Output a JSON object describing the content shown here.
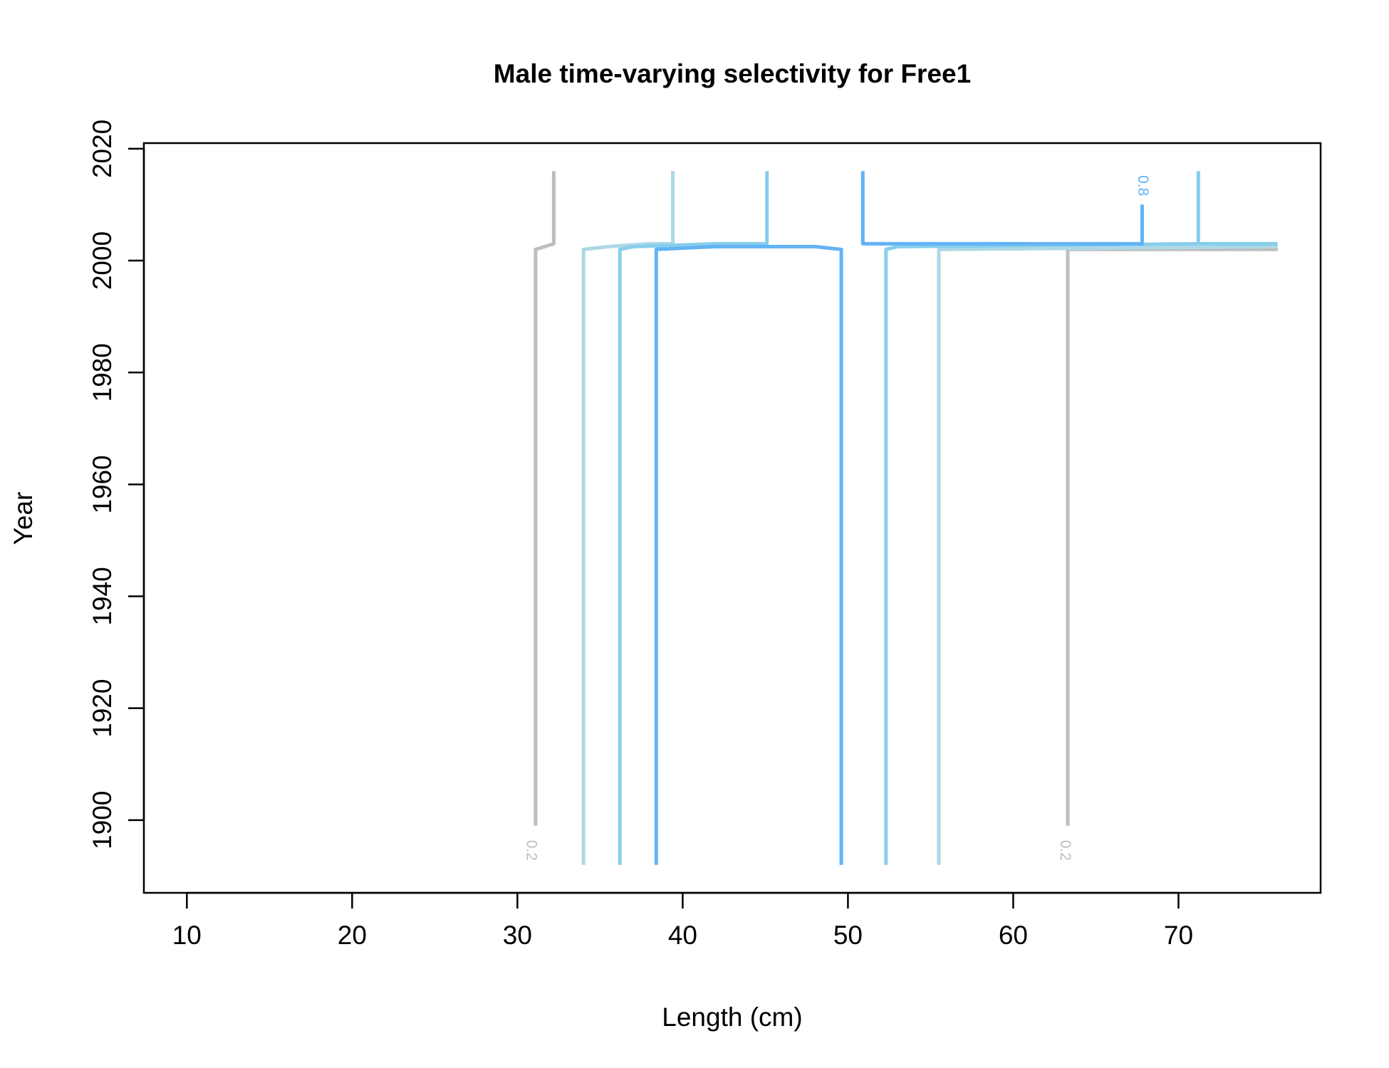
{
  "chart_data": {
    "type": "line",
    "plot_kind": "contour",
    "title": "Male time-varying selectivity for Free1",
    "xlabel": "Length (cm)",
    "ylabel": "Year",
    "xlim": [
      7.4,
      78.6
    ],
    "ylim": [
      1887,
      2021
    ],
    "x_ticks": [
      10,
      20,
      30,
      40,
      50,
      60,
      70
    ],
    "y_ticks": [
      1900,
      1920,
      1940,
      1960,
      1980,
      2000,
      2020
    ],
    "colors": {
      "level_0_2": "#BEBEBE",
      "level_0_4": "#ADD8E6",
      "level_0_6": "#87CEEB",
      "level_0_8": "#63B3F5",
      "axis": "#000000"
    },
    "series": [
      {
        "level": 0.2,
        "color": "#BEBEBE",
        "points": [
          [
            31.1,
            1899
          ],
          [
            31.1,
            2002
          ],
          [
            32.2,
            2003
          ],
          [
            32.2,
            2016
          ]
        ]
      },
      {
        "level": 0.2,
        "color": "#BEBEBE",
        "points": [
          [
            63.3,
            1899
          ],
          [
            63.3,
            2002
          ],
          [
            76.0,
            2002
          ]
        ]
      },
      {
        "level": 0.4,
        "color": "#ADD8E6",
        "points": [
          [
            34.0,
            1892
          ],
          [
            34.0,
            2002
          ],
          [
            35.5,
            2002.5
          ],
          [
            38.0,
            2003
          ],
          [
            39.4,
            2003
          ],
          [
            39.4,
            2016
          ]
        ]
      },
      {
        "level": 0.4,
        "color": "#ADD8E6",
        "points": [
          [
            55.5,
            1892
          ],
          [
            55.5,
            2002
          ],
          [
            76.0,
            2002.5
          ]
        ]
      },
      {
        "level": 0.6,
        "color": "#87CEEB",
        "points": [
          [
            36.2,
            1892
          ],
          [
            36.2,
            2002
          ],
          [
            37.0,
            2002.5
          ],
          [
            42.0,
            2003
          ],
          [
            45.1,
            2003
          ],
          [
            45.1,
            2016
          ]
        ]
      },
      {
        "level": 0.6,
        "color": "#87CEEB",
        "points": [
          [
            52.3,
            1892
          ],
          [
            52.3,
            2002
          ],
          [
            53.0,
            2002.5
          ],
          [
            71.2,
            2003
          ],
          [
            71.2,
            2016
          ]
        ]
      },
      {
        "level": 0.6,
        "color": "#87CEEB",
        "points": [
          [
            71.2,
            2003
          ],
          [
            76.0,
            2003
          ]
        ]
      },
      {
        "level": 0.8,
        "color": "#63B3F5",
        "points": [
          [
            38.4,
            1892
          ],
          [
            38.4,
            2002
          ],
          [
            42.0,
            2002.5
          ],
          [
            48.0,
            2002.5
          ],
          [
            49.6,
            2002
          ],
          [
            49.6,
            1892
          ]
        ]
      },
      {
        "level": 0.8,
        "color": "#63B3F5",
        "points": [
          [
            50.9,
            2016
          ],
          [
            50.9,
            2003
          ],
          [
            67.8,
            2003
          ],
          [
            67.8,
            2010
          ]
        ]
      }
    ],
    "contour_labels": [
      {
        "text": "0.2",
        "x": 30.8,
        "y": 1894.6,
        "color": "#BEBEBE"
      },
      {
        "text": "0.2",
        "x": 63.1,
        "y": 1894.6,
        "color": "#BEBEBE"
      },
      {
        "text": "0.8",
        "x": 67.8,
        "y": 2013.4,
        "color": "#63B3F5"
      }
    ],
    "grid": false,
    "legend": "none"
  }
}
